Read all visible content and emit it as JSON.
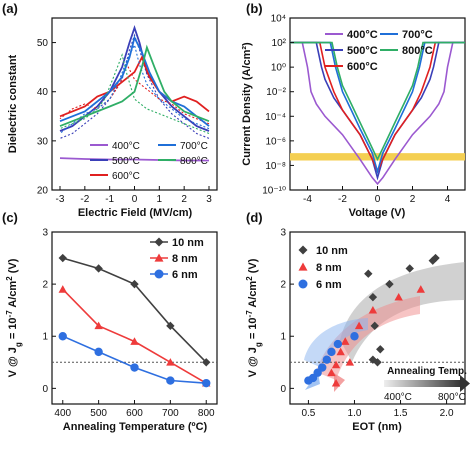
{
  "figure": {
    "panel_labels": [
      "(a)",
      "(b)",
      "(c)",
      "(d)"
    ]
  },
  "colors": {
    "400": "#9b59d0",
    "500": "#3a3fb8",
    "600": "#e02020",
    "700": "#1f6fd8",
    "800": "#2fae66",
    "gray": "#404040",
    "red": "#ee3b3b",
    "blue": "#2e6fe0",
    "band": "#f4cf52"
  },
  "chart_data": [
    {
      "id": "a",
      "type": "line",
      "xlabel": "Electric Field (MV/cm)",
      "ylabel": "Dielectric constant",
      "xlim": [
        -3,
        3
      ],
      "ylim": [
        20,
        55
      ],
      "xticks": [
        "-3",
        "-2",
        "-1",
        "0",
        "1",
        "2",
        "3"
      ],
      "yticks": [
        "20",
        "30",
        "40",
        "50"
      ],
      "legend": [
        "400°C",
        "700°C",
        "500°C",
        "800°C",
        "600°C"
      ],
      "series": [
        {
          "name": "400°C",
          "color": "#9b59d0",
          "x": [
            -3,
            -2,
            -1,
            0,
            1,
            2,
            3
          ],
          "y": [
            26.5,
            26.3,
            26.2,
            26.2,
            26.1,
            26.0,
            26.0
          ]
        },
        {
          "name": "500°C",
          "color": "#3a3fb8",
          "x": [
            -3,
            -2.5,
            -2,
            -1.5,
            -1,
            -0.5,
            -0.2,
            0,
            0.2,
            0.5,
            1,
            1.5,
            2,
            2.5,
            3
          ],
          "y": [
            32,
            33,
            35,
            37,
            40,
            45,
            50,
            53,
            50,
            44,
            40,
            37,
            35,
            33,
            32
          ]
        },
        {
          "name": "600°C",
          "color": "#e02020",
          "x": [
            -3,
            -2.5,
            -2,
            -1.5,
            -1,
            -0.5,
            0,
            0.3,
            0.6,
            1,
            1.5,
            2,
            2.5,
            3
          ],
          "y": [
            35,
            36,
            37,
            39,
            40,
            42,
            44,
            47,
            43,
            40,
            38,
            39,
            38,
            36
          ]
        },
        {
          "name": "700°C",
          "color": "#1f6fd8",
          "x": [
            -3,
            -2.5,
            -2,
            -1.5,
            -1,
            -0.5,
            -0.2,
            0,
            0.3,
            0.6,
            1,
            1.5,
            2,
            2.5,
            3
          ],
          "y": [
            34,
            35,
            36,
            38,
            40,
            43,
            47,
            51,
            48,
            44,
            40,
            38,
            37,
            35,
            33
          ]
        },
        {
          "name": "800°C",
          "color": "#2fae66",
          "x": [
            -3,
            -2.5,
            -2,
            -1.5,
            -1,
            -0.5,
            0,
            0.3,
            0.5,
            0.8,
            1.2,
            1.5,
            2,
            2.5,
            3
          ],
          "y": [
            33,
            34,
            35,
            36,
            37,
            38,
            40,
            45,
            49,
            45,
            40,
            38,
            36,
            35,
            34
          ]
        }
      ]
    },
    {
      "id": "b",
      "type": "line",
      "xlabel": "Voltage (V)",
      "ylabel": "Current Density (A/cm²)",
      "xlim": [
        -5,
        5
      ],
      "ylog": true,
      "ylim_exp": [
        -10,
        4
      ],
      "xticks": [
        "-4",
        "-2",
        "0",
        "2",
        "4"
      ],
      "yticks": [
        "10⁴",
        "10²",
        "10⁰",
        "10⁻²",
        "10⁻⁴",
        "10⁻⁶",
        "10⁻⁸",
        "10⁻¹⁰"
      ],
      "legend": [
        "400°C",
        "700°C",
        "500°C",
        "800°C",
        "600°C"
      ],
      "band_exp": [
        -7.6,
        -7.0
      ],
      "series": [
        {
          "name": "400°C",
          "color": "#9b59d0",
          "x": [
            -5,
            -4.3,
            -4,
            -3.8,
            -3.5,
            -3,
            -2,
            -1,
            -0.3,
            0,
            0.3,
            1,
            2,
            3,
            3.5,
            3.8,
            4,
            4.3,
            5
          ],
          "logy": [
            2,
            2,
            0,
            -2,
            -3,
            -4,
            -5.5,
            -7.5,
            -9,
            -9.5,
            -9,
            -7.5,
            -5.5,
            -4,
            -3,
            -2,
            0,
            2,
            2
          ]
        },
        {
          "name": "500°C",
          "color": "#3a3fb8",
          "x": [
            -5,
            -3.5,
            -3.2,
            -3,
            -2.5,
            -2,
            -1,
            -0.3,
            0,
            0.3,
            1,
            2,
            2.5,
            3,
            3.2,
            3.5,
            5
          ],
          "logy": [
            2,
            2,
            0,
            -1,
            -2.5,
            -3.5,
            -5.5,
            -7.5,
            -9,
            -7.5,
            -5.5,
            -3.5,
            -2.5,
            -1,
            0,
            2,
            2
          ]
        },
        {
          "name": "600°C",
          "color": "#e02020",
          "x": [
            -5,
            -3.3,
            -3,
            -2.5,
            -2,
            -1,
            -0.3,
            0,
            0.3,
            1,
            2,
            2.5,
            3,
            3.3,
            5
          ],
          "logy": [
            2,
            2,
            0,
            -2,
            -3.5,
            -5.5,
            -7.5,
            -8.5,
            -7.5,
            -5.5,
            -3.5,
            -2,
            0,
            2,
            2
          ]
        },
        {
          "name": "700°C",
          "color": "#1f6fd8",
          "x": [
            -5,
            -2.7,
            -2.4,
            -2,
            -1.5,
            -1,
            -0.3,
            0,
            0.3,
            1,
            1.5,
            2,
            2.4,
            2.7,
            5
          ],
          "logy": [
            2,
            2,
            0,
            -2,
            -3.5,
            -5,
            -7,
            -8.5,
            -7,
            -5,
            -3.5,
            -2,
            0,
            2,
            2
          ]
        },
        {
          "name": "800°C",
          "color": "#2fae66",
          "x": [
            -5,
            -2.6,
            -2.3,
            -2,
            -1.5,
            -1,
            -0.5,
            0,
            0.5,
            1,
            1.5,
            2,
            2.3,
            2.6,
            5
          ],
          "logy": [
            2,
            2,
            0,
            -1.5,
            -3,
            -4.5,
            -6,
            -7.5,
            -6,
            -4.5,
            -3,
            -1.5,
            0,
            2,
            2
          ]
        }
      ]
    },
    {
      "id": "c",
      "type": "line",
      "xlabel": "Annealing Temperature (ºC)",
      "ylabel": "V @ Jg = 10⁻⁷ A/cm² (V)",
      "xlim": [
        370,
        830
      ],
      "ylim": [
        -0.3,
        3
      ],
      "xticks": [
        "400",
        "500",
        "600",
        "700",
        "800"
      ],
      "yticks": [
        "0",
        "1",
        "2",
        "3"
      ],
      "reference_y": 0.5,
      "legend": [
        "10 nm",
        "8 nm",
        "6 nm"
      ],
      "series": [
        {
          "name": "10 nm",
          "color": "#404040",
          "marker": "diamond",
          "x": [
            400,
            500,
            600,
            700,
            800
          ],
          "y": [
            2.5,
            2.3,
            2.0,
            1.2,
            0.5
          ]
        },
        {
          "name": "8 nm",
          "color": "#ee3b3b",
          "marker": "triangle",
          "x": [
            400,
            500,
            600,
            700,
            800
          ],
          "y": [
            1.9,
            1.2,
            0.9,
            0.5,
            0.1
          ]
        },
        {
          "name": "6 nm",
          "color": "#2e6fe0",
          "marker": "circle",
          "x": [
            400,
            500,
            600,
            700,
            800
          ],
          "y": [
            1.0,
            0.7,
            0.4,
            0.15,
            0.1
          ]
        }
      ]
    },
    {
      "id": "d",
      "type": "scatter",
      "xlabel": "EOT (nm)",
      "ylabel": "V @ Jg = 10⁻⁷ A/cm² (V)",
      "xlim": [
        0.3,
        2.2
      ],
      "ylim": [
        -0.3,
        3
      ],
      "xticks": [
        "0.5",
        "1.0",
        "1.5",
        "2.0"
      ],
      "yticks": [
        "0",
        "1",
        "2",
        "3"
      ],
      "reference_y": 0.5,
      "legend": [
        "10 nm",
        "8 nm",
        "6 nm"
      ],
      "annotation": "Annealing Temp.",
      "arrow_start_label": "400°C",
      "arrow_end_label": "800°C",
      "series": [
        {
          "name": "10 nm",
          "color": "#404040",
          "marker": "diamond",
          "x": [
            1.85,
            1.88,
            1.6,
            1.38,
            1.15,
            1.2,
            1.22,
            1.28,
            1.25,
            1.2
          ],
          "y": [
            2.45,
            2.5,
            2.3,
            2.0,
            2.2,
            1.75,
            1.2,
            0.75,
            0.5,
            0.55
          ]
        },
        {
          "name": "8 nm",
          "color": "#ee3b3b",
          "marker": "triangle",
          "x": [
            1.72,
            1.48,
            1.2,
            1.05,
            0.9,
            0.85,
            0.95,
            0.8,
            0.75,
            0.8
          ],
          "y": [
            1.9,
            1.75,
            1.5,
            1.2,
            0.9,
            0.7,
            0.5,
            0.45,
            0.3,
            0.1
          ]
        },
        {
          "name": "6 nm",
          "color": "#2e6fe0",
          "marker": "circle",
          "x": [
            1.0,
            0.82,
            0.75,
            0.7,
            0.65,
            0.6,
            0.55,
            0.5
          ],
          "y": [
            1.0,
            0.85,
            0.7,
            0.55,
            0.4,
            0.3,
            0.2,
            0.15
          ]
        }
      ]
    }
  ]
}
